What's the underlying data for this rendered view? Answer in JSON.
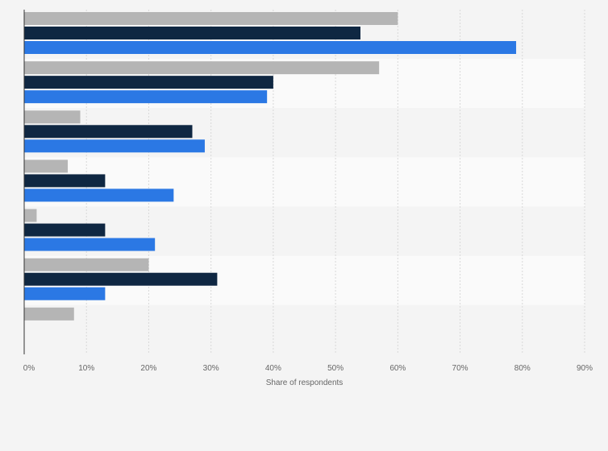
{
  "chart_data": {
    "type": "bar",
    "orientation": "horizontal",
    "title": "",
    "xlabel": "Share of respondents",
    "ylabel": "",
    "x_ticks": [
      "0%",
      "10%",
      "20%",
      "30%",
      "40%",
      "50%",
      "60%",
      "70%",
      "80%",
      "90%"
    ],
    "xlim": [
      0,
      90
    ],
    "grid": true,
    "legend": "none",
    "categories": [
      "",
      "",
      "",
      "",
      "",
      "",
      ""
    ],
    "series": [
      {
        "color": "#b5b5b5",
        "values": [
          60,
          57,
          9,
          7,
          2,
          20,
          8
        ]
      },
      {
        "color": "#0f2742",
        "values": [
          54,
          40,
          27,
          13,
          13,
          31,
          null
        ]
      },
      {
        "color": "#2b78e4",
        "values": [
          79,
          39,
          29,
          24,
          21,
          13,
          null
        ]
      }
    ]
  }
}
